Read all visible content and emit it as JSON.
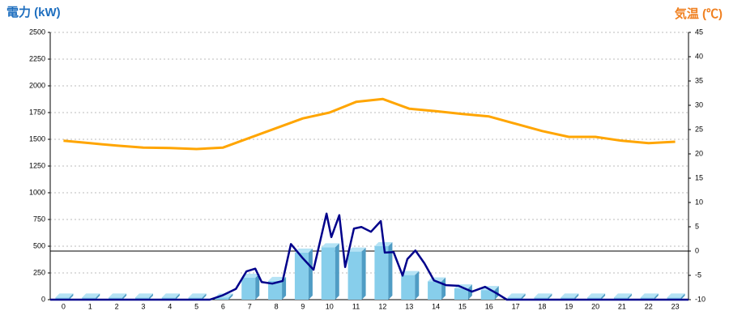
{
  "chart_data": {
    "type": "bar",
    "y_title": "電力 (kW)",
    "y2_title": "気温 (℃)",
    "categories": [
      "0",
      "1",
      "2",
      "3",
      "4",
      "5",
      "6",
      "7",
      "8",
      "9",
      "10",
      "11",
      "12",
      "13",
      "14",
      "15",
      "16",
      "17",
      "18",
      "19",
      "20",
      "21",
      "22",
      "23"
    ],
    "ylim": [
      0,
      2500
    ],
    "yticks": [
      0,
      250,
      500,
      750,
      1000,
      1250,
      1500,
      1750,
      2000,
      2250,
      2500
    ],
    "y2lim": [
      -10,
      45
    ],
    "y2ticks": [
      -10,
      -5,
      0,
      5,
      10,
      15,
      20,
      25,
      30,
      35,
      40,
      45
    ],
    "grid": true,
    "bar_series": {
      "color": "#87ceeb",
      "values": [
        20,
        20,
        20,
        20,
        20,
        20,
        20,
        205,
        175,
        440,
        490,
        450,
        500,
        230,
        170,
        105,
        90,
        20,
        20,
        20,
        20,
        20,
        20,
        20
      ]
    },
    "line_series": {
      "color": "#00008b",
      "x": [
        -0.5,
        5.5,
        5.96,
        6.48,
        6.88,
        7.21,
        7.45,
        7.85,
        8.24,
        8.55,
        8.97,
        9.4,
        9.89,
        10.07,
        10.37,
        10.59,
        10.92,
        11.2,
        11.56,
        11.93,
        12.08,
        12.41,
        12.75,
        12.93,
        13.23,
        13.57,
        13.93,
        14.39,
        14.85,
        15.36,
        15.85,
        16.28,
        16.67,
        23.5
      ],
      "values": [
        0,
        0,
        38,
        100,
        265,
        290,
        165,
        150,
        175,
        520,
        395,
        280,
        805,
        585,
        790,
        305,
        665,
        680,
        635,
        735,
        440,
        445,
        225,
        380,
        460,
        340,
        180,
        135,
        130,
        75,
        120,
        60,
        0,
        0
      ]
    },
    "temp_series": {
      "color": "#ffa500",
      "axis": "y2",
      "values": [
        22.7,
        22.2,
        21.7,
        21.3,
        21.2,
        21.0,
        21.3,
        23.3,
        25.3,
        27.3,
        28.5,
        30.7,
        31.3,
        29.3,
        28.8,
        28.2,
        27.7,
        26.2,
        24.7,
        23.5,
        23.5,
        22.7,
        22.2,
        22.5
      ]
    }
  }
}
